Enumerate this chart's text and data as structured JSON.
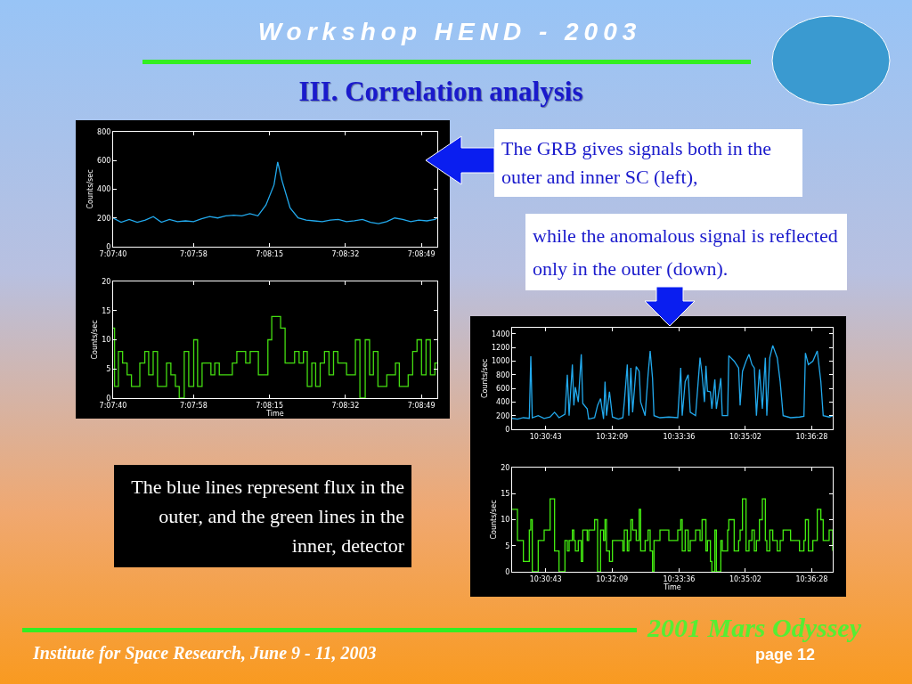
{
  "chart_data": [
    {
      "type": "line",
      "ylabel": "Counts/sec",
      "xlim": [
        7.12778,
        7.14793
      ],
      "ylim": [
        0,
        800
      ],
      "yticks": [
        0,
        200,
        400,
        600,
        800
      ],
      "xticks": [
        {
          "value": 7.12778,
          "label": "7:07:40"
        },
        {
          "value": 7.13278,
          "label": "7:07:58"
        },
        {
          "value": 7.1375,
          "label": "7:08:15"
        },
        {
          "value": 7.14222,
          "label": "7:08:32"
        },
        {
          "value": 7.14694,
          "label": "7:08:49"
        }
      ],
      "x": [
        7.12778,
        7.12828,
        7.12878,
        7.12928,
        7.12978,
        7.13028,
        7.13078,
        7.13128,
        7.13178,
        7.13228,
        7.13278,
        7.13328,
        7.13378,
        7.13428,
        7.13478,
        7.13528,
        7.13578,
        7.13628,
        7.13678,
        7.13728,
        7.13778,
        7.13801,
        7.13828,
        7.13878,
        7.13928,
        7.13978,
        7.14028,
        7.14078,
        7.14128,
        7.14178,
        7.14228,
        7.14278,
        7.14328,
        7.14378,
        7.14428,
        7.14478,
        7.14528,
        7.14578,
        7.14628,
        7.14678,
        7.14728,
        7.14778,
        7.14793
      ],
      "series": [
        {
          "color": "#22aaee",
          "values": [
            200,
            170,
            190,
            170,
            185,
            210,
            170,
            190,
            175,
            180,
            175,
            195,
            210,
            200,
            215,
            220,
            215,
            230,
            215,
            290,
            430,
            590,
            460,
            270,
            200,
            185,
            180,
            175,
            185,
            190,
            175,
            180,
            190,
            170,
            160,
            175,
            200,
            190,
            175,
            185,
            180,
            190,
            200
          ]
        }
      ]
    },
    {
      "type": "step",
      "ylabel": "Counts/sec",
      "xlabel": "Time",
      "xlim": [
        7.12778,
        7.14793
      ],
      "ylim": [
        0,
        20
      ],
      "yticks": [
        0,
        5,
        10,
        15,
        20
      ],
      "xticks": [
        {
          "value": 7.12778,
          "label": "7:07:40"
        },
        {
          "value": 7.13278,
          "label": "7:07:58"
        },
        {
          "value": 7.1375,
          "label": "7:08:15"
        },
        {
          "value": 7.14222,
          "label": "7:08:32"
        },
        {
          "value": 7.14694,
          "label": "7:08:49"
        }
      ],
      "x": [
        7.12778,
        7.12787,
        7.12811,
        7.12837,
        7.12865,
        7.12892,
        7.12944,
        7.12975,
        7.12999,
        7.13027,
        7.13054,
        7.1311,
        7.13137,
        7.13165,
        7.13189,
        7.1322,
        7.13248,
        7.13279,
        7.13303,
        7.13331,
        7.13386,
        7.1341,
        7.13438,
        7.13519,
        7.13547,
        7.13602,
        7.1363,
        7.13681,
        7.1374,
        7.13764,
        7.13819,
        7.13847,
        7.13906,
        7.13934,
        7.13961,
        7.13985,
        7.14013,
        7.14037,
        7.14065,
        7.14092,
        7.1412,
        7.14148,
        7.14175,
        7.14229,
        7.14284,
        7.14312,
        7.14345,
        7.14372,
        7.14396,
        7.14424,
        7.14479,
        7.14533,
        7.14557,
        7.14612,
        7.1464,
        7.14667,
        7.14695,
        7.14723,
        7.1475,
        7.14778,
        7.14793
      ],
      "series": [
        {
          "color": "#44dd11",
          "values": [
            12,
            2,
            8,
            6,
            4,
            2,
            6,
            8,
            4,
            8,
            2,
            6,
            4,
            2,
            0,
            8,
            2,
            10,
            2,
            6,
            4,
            6,
            4,
            6,
            8,
            6,
            8,
            4,
            10,
            14,
            12,
            6,
            8,
            6,
            8,
            2,
            6,
            2,
            6,
            8,
            4,
            8,
            6,
            4,
            10,
            0,
            10,
            4,
            8,
            2,
            4,
            6,
            2,
            4,
            8,
            10,
            4,
            10,
            4,
            6,
            6
          ]
        }
      ]
    },
    {
      "type": "line",
      "ylabel": "Counts/sec",
      "xlim": [
        10.49985,
        10.61537
      ],
      "ylim": [
        0,
        1490
      ],
      "yticks": [
        0,
        200,
        400,
        600,
        800,
        1000,
        1200,
        1400
      ],
      "xticks": [
        {
          "value": 10.51194,
          "label": "10:30:43"
        },
        {
          "value": 10.53583,
          "label": "10:32:09"
        },
        {
          "value": 10.56,
          "label": "10:33:36"
        },
        {
          "value": 10.58389,
          "label": "10:35:02"
        },
        {
          "value": 10.60778,
          "label": "10:36:28"
        }
      ],
      "x": [
        10.49985,
        10.50178,
        10.50391,
        10.50605,
        10.50659,
        10.50712,
        10.50926,
        10.5114,
        10.51354,
        10.51515,
        10.51675,
        10.51889,
        10.51974,
        10.52039,
        10.52156,
        10.5221,
        10.52263,
        10.5237,
        10.52477,
        10.52531,
        10.52691,
        10.52745,
        10.52958,
        10.53065,
        10.53172,
        10.53279,
        10.53333,
        10.53386,
        10.53493,
        10.536,
        10.53814,
        10.53975,
        10.54028,
        10.54135,
        10.54189,
        10.54263,
        10.54328,
        10.54456,
        10.54563,
        10.54616,
        10.54777,
        10.54884,
        10.54959,
        10.55044,
        10.55098,
        10.55312,
        10.55632,
        10.55953,
        10.5606,
        10.56114,
        10.56221,
        10.56328,
        10.56403,
        10.56595,
        10.56756,
        10.5683,
        10.56916,
        10.56969,
        10.57023,
        10.5713,
        10.57183,
        10.5729,
        10.57344,
        10.57504,
        10.57558,
        10.5775,
        10.57793,
        10.57986,
        10.58146,
        10.582,
        10.58285,
        10.58413,
        10.5852,
        10.58627,
        10.58713,
        10.58788,
        10.58895,
        10.59002,
        10.59109,
        10.59162,
        10.59269,
        10.59376,
        10.59537,
        10.59643,
        10.5975,
        10.60018,
        10.60339,
        10.60499,
        10.60553,
        10.6066,
        10.6082,
        10.6098,
        10.61109,
        10.61194,
        10.61408,
        10.61537
      ],
      "series": [
        {
          "color": "#22aaee",
          "values": [
            160,
            150,
            170,
            160,
            1070,
            170,
            200,
            160,
            180,
            250,
            170,
            220,
            800,
            200,
            950,
            350,
            620,
            400,
            1100,
            380,
            300,
            150,
            170,
            350,
            450,
            150,
            700,
            200,
            550,
            180,
            150,
            170,
            400,
            950,
            200,
            900,
            250,
            920,
            850,
            400,
            200,
            800,
            1150,
            750,
            200,
            170,
            180,
            170,
            900,
            200,
            700,
            800,
            250,
            200,
            1050,
            800,
            400,
            930,
            560,
            550,
            300,
            730,
            300,
            750,
            200,
            200,
            1080,
            1000,
            900,
            350,
            850,
            1000,
            1100,
            950,
            900,
            200,
            880,
            300,
            1050,
            200,
            1050,
            1230,
            1050,
            700,
            200,
            170,
            180,
            190,
            1120,
            950,
            1000,
            1150,
            700,
            200,
            180,
            200
          ]
        }
      ]
    },
    {
      "type": "step",
      "ylabel": "Counts/sec",
      "xlabel": "Time",
      "xlim": [
        10.49985,
        10.61537
      ],
      "ylim": [
        0,
        20
      ],
      "yticks": [
        0,
        5,
        10,
        15,
        20
      ],
      "xticks": [
        {
          "value": 10.51194,
          "label": "10:30:43"
        },
        {
          "value": 10.53583,
          "label": "10:32:09"
        },
        {
          "value": 10.56,
          "label": "10:33:36"
        },
        {
          "value": 10.58389,
          "label": "10:35:02"
        },
        {
          "value": 10.60778,
          "label": "10:36:28"
        }
      ],
      "x": [
        10.49985,
        10.50178,
        10.50391,
        10.50605,
        10.50659,
        10.50712,
        10.50926,
        10.5114,
        10.51354,
        10.51515,
        10.51675,
        10.51889,
        10.51974,
        10.52039,
        10.52156,
        10.5221,
        10.52263,
        10.5237,
        10.52477,
        10.52531,
        10.52691,
        10.52745,
        10.52958,
        10.53065,
        10.53172,
        10.53279,
        10.53333,
        10.53386,
        10.53493,
        10.536,
        10.53814,
        10.53975,
        10.54028,
        10.54135,
        10.54189,
        10.54263,
        10.54328,
        10.54456,
        10.54563,
        10.54616,
        10.54777,
        10.54884,
        10.54959,
        10.55044,
        10.55098,
        10.55312,
        10.55632,
        10.55953,
        10.5606,
        10.56114,
        10.56221,
        10.56328,
        10.56403,
        10.56595,
        10.56756,
        10.5683,
        10.56916,
        10.56969,
        10.57023,
        10.5713,
        10.57183,
        10.5729,
        10.57344,
        10.57504,
        10.57558,
        10.5775,
        10.57793,
        10.57986,
        10.58146,
        10.582,
        10.58285,
        10.58413,
        10.5852,
        10.58627,
        10.58713,
        10.58788,
        10.58895,
        10.59002,
        10.59109,
        10.59162,
        10.59269,
        10.59376,
        10.59537,
        10.59643,
        10.5975,
        10.60018,
        10.60339,
        10.60499,
        10.60553,
        10.6066,
        10.6082,
        10.6098,
        10.61109,
        10.61194,
        10.61408,
        10.61537
      ],
      "series": [
        {
          "color": "#44ee11",
          "values": [
            12,
            6,
            2,
            8,
            10,
            0,
            6,
            8,
            14,
            4,
            0,
            6,
            4,
            6,
            8,
            6,
            4,
            6,
            2,
            8,
            6,
            8,
            10,
            0,
            8,
            6,
            10,
            4,
            2,
            6,
            6,
            4,
            8,
            4,
            6,
            10,
            8,
            6,
            12,
            4,
            6,
            8,
            4,
            0,
            6,
            8,
            6,
            8,
            10,
            4,
            8,
            4,
            6,
            8,
            6,
            10,
            10,
            4,
            6,
            2,
            0,
            8,
            0,
            6,
            4,
            8,
            10,
            4,
            6,
            8,
            14,
            4,
            6,
            8,
            4,
            6,
            10,
            14,
            6,
            4,
            8,
            6,
            4,
            6,
            8,
            6,
            4,
            6,
            10,
            4,
            6,
            12,
            10,
            6,
            8,
            4
          ]
        }
      ]
    },
    {
      "type": "other",
      "title": "Workshop HEND - 2003",
      "subtitle": "III. Correlation analysis",
      "annotations": [
        "The GRB gives signals both in the outer and inner SC (left),",
        "while the anomalous signal is reflected only in the outer (down).",
        "The blue lines represent flux in the outer, and the green lines in the inner, detector",
        "Institute for Space Research, June 9 - 11, 2003",
        "2001 Mars Odyssey",
        "page 12"
      ]
    }
  ]
}
